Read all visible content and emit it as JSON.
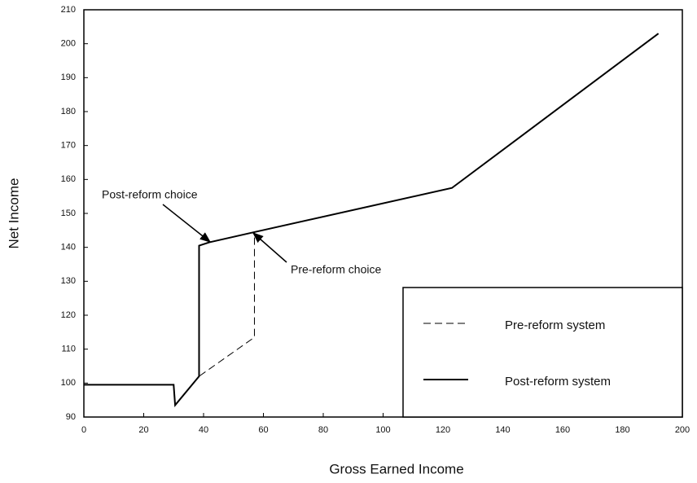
{
  "chart_data": {
    "type": "line",
    "x_label": "Gross Earned Income",
    "y_label": "Net Income",
    "series": [
      {
        "name": "Pre-reform system",
        "color": "#000000",
        "line_style": "dashed",
        "x": [
          0,
          30,
          30.5,
          38.5,
          57,
          57,
          123,
          192
        ],
        "values": [
          99.5,
          99.5,
          93.5,
          102,
          113.5,
          144.5,
          157.5,
          203
        ]
      },
      {
        "name": "Post-reform system",
        "color": "#000000",
        "line_style": "solid",
        "x": [
          0,
          30,
          30.5,
          38.5,
          38.5,
          42,
          57,
          123,
          192
        ],
        "values": [
          99.5,
          99.5,
          93.5,
          102,
          140.5,
          141.5,
          144.5,
          157.5,
          203
        ]
      }
    ],
    "annotations": [
      "Post-reform choice",
      "Pre-reform choice"
    ],
    "xlim": [
      0,
      200
    ],
    "xticks": [
      0,
      20,
      40,
      60,
      80,
      100,
      120,
      140,
      160,
      180,
      200
    ],
    "ylim": [
      90,
      210
    ],
    "yticks": [
      90,
      100,
      110,
      120,
      130,
      140,
      150,
      160,
      170,
      180,
      190,
      200,
      210
    ],
    "legend": "lower right",
    "grid": false
  }
}
